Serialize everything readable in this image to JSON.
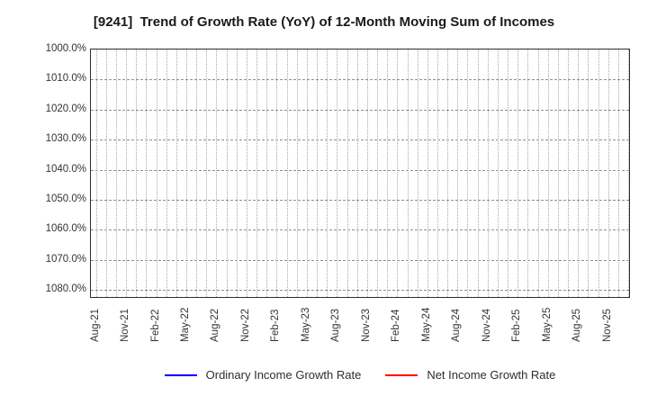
{
  "chart_data": {
    "type": "line",
    "title": "[9241]  Trend of Growth Rate (YoY) of 12-Month Moving Sum of Incomes",
    "xlabel": "",
    "ylabel": "",
    "x_tick_labels": [
      "Aug-21",
      "Nov-21",
      "Feb-22",
      "May-22",
      "Aug-22",
      "Nov-22",
      "Feb-23",
      "May-23",
      "Aug-23",
      "Nov-23",
      "Feb-24",
      "May-24",
      "Aug-24",
      "Nov-24",
      "Feb-25",
      "May-25",
      "Aug-25",
      "Nov-25"
    ],
    "x_label_interval_months": 3,
    "n_vertical_gridlines": 54,
    "y_tick_labels": [
      "1000.0%",
      "1010.0%",
      "1020.0%",
      "1030.0%",
      "1040.0%",
      "1050.0%",
      "1060.0%",
      "1070.0%",
      "1080.0%"
    ],
    "y_ticks": [
      1000.0,
      1010.0,
      1020.0,
      1030.0,
      1040.0,
      1050.0,
      1060.0,
      1070.0,
      1080.0
    ],
    "ylim": [
      1000.0,
      1083.0
    ],
    "y_axis_direction": "values-increase-downward",
    "grid": true,
    "grid_style": {
      "horizontal": "dashed",
      "vertical": "dotted",
      "color": "#999999"
    },
    "legend_position": "bottom",
    "series": [
      {
        "name": "Ordinary Income Growth Rate",
        "color": "#0000ff",
        "values": []
      },
      {
        "name": "Net Income Growth Rate",
        "color": "#ff0000",
        "values": []
      }
    ]
  },
  "legend": {
    "items": [
      {
        "label": "Ordinary Income Growth Rate",
        "color": "#0000ff"
      },
      {
        "label": "Net Income Growth Rate",
        "color": "#ff0000"
      }
    ]
  }
}
